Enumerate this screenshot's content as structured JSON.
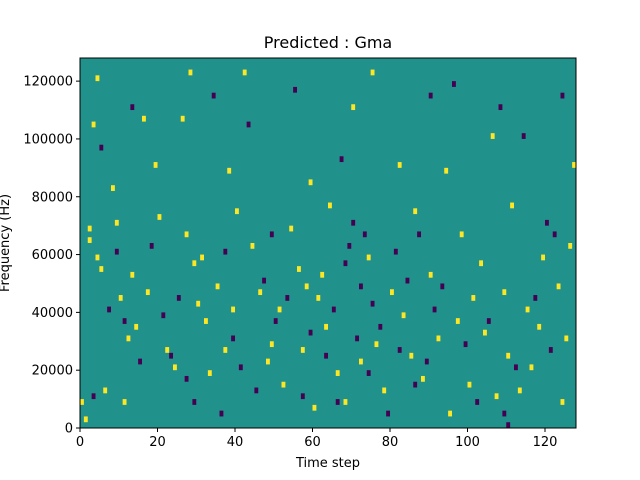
{
  "chart_data": {
    "type": "heatmap",
    "title": "Predicted : Gma",
    "xlabel": "Time step",
    "ylabel": "Frequency (Hz)",
    "xlim": [
      0,
      128
    ],
    "ylim": [
      0,
      128000
    ],
    "xticks": [
      0,
      20,
      40,
      60,
      80,
      100,
      120
    ],
    "yticks": [
      0,
      20000,
      40000,
      60000,
      80000,
      100000,
      120000
    ],
    "grid": false,
    "colors": {
      "background": "#21918c",
      "high": "#fde725",
      "low": "#440154"
    },
    "yellow_cells": [
      [
        0,
        8000
      ],
      [
        1,
        2000
      ],
      [
        2,
        68000
      ],
      [
        2,
        64000
      ],
      [
        3,
        104000
      ],
      [
        4,
        120000
      ],
      [
        4,
        58000
      ],
      [
        5,
        54000
      ],
      [
        6,
        12000
      ],
      [
        8,
        82000
      ],
      [
        9,
        70000
      ],
      [
        10,
        44000
      ],
      [
        11,
        8000
      ],
      [
        12,
        30000
      ],
      [
        13,
        52000
      ],
      [
        14,
        34000
      ],
      [
        16,
        106000
      ],
      [
        17,
        46000
      ],
      [
        19,
        90000
      ],
      [
        20,
        72000
      ],
      [
        22,
        26000
      ],
      [
        24,
        20000
      ],
      [
        26,
        106000
      ],
      [
        27,
        66000
      ],
      [
        28,
        122000
      ],
      [
        29,
        56000
      ],
      [
        30,
        42000
      ],
      [
        31,
        58000
      ],
      [
        32,
        36000
      ],
      [
        33,
        18000
      ],
      [
        35,
        48000
      ],
      [
        37,
        26000
      ],
      [
        38,
        88000
      ],
      [
        39,
        40000
      ],
      [
        40,
        74000
      ],
      [
        42,
        122000
      ],
      [
        44,
        62000
      ],
      [
        46,
        46000
      ],
      [
        48,
        22000
      ],
      [
        49,
        28000
      ],
      [
        51,
        40000
      ],
      [
        52,
        14000
      ],
      [
        54,
        68000
      ],
      [
        56,
        54000
      ],
      [
        57,
        26000
      ],
      [
        58,
        48000
      ],
      [
        59,
        84000
      ],
      [
        60,
        6000
      ],
      [
        61,
        44000
      ],
      [
        62,
        52000
      ],
      [
        63,
        34000
      ],
      [
        64,
        76000
      ],
      [
        66,
        18000
      ],
      [
        68,
        8000
      ],
      [
        70,
        110000
      ],
      [
        72,
        22000
      ],
      [
        74,
        58000
      ],
      [
        75,
        122000
      ],
      [
        76,
        28000
      ],
      [
        78,
        12000
      ],
      [
        80,
        46000
      ],
      [
        82,
        90000
      ],
      [
        83,
        38000
      ],
      [
        85,
        24000
      ],
      [
        86,
        74000
      ],
      [
        88,
        16000
      ],
      [
        90,
        52000
      ],
      [
        92,
        30000
      ],
      [
        94,
        88000
      ],
      [
        95,
        4000
      ],
      [
        97,
        36000
      ],
      [
        98,
        66000
      ],
      [
        100,
        14000
      ],
      [
        101,
        44000
      ],
      [
        103,
        56000
      ],
      [
        104,
        32000
      ],
      [
        106,
        100000
      ],
      [
        107,
        10000
      ],
      [
        109,
        46000
      ],
      [
        110,
        24000
      ],
      [
        111,
        76000
      ],
      [
        113,
        12000
      ],
      [
        115,
        40000
      ],
      [
        116,
        20000
      ],
      [
        118,
        34000
      ],
      [
        119,
        58000
      ],
      [
        123,
        48000
      ],
      [
        124,
        8000
      ],
      [
        125,
        30000
      ],
      [
        126,
        62000
      ],
      [
        127,
        90000
      ]
    ],
    "purple_cells": [
      [
        3,
        10000
      ],
      [
        5,
        96000
      ],
      [
        7,
        40000
      ],
      [
        9,
        60000
      ],
      [
        11,
        36000
      ],
      [
        13,
        110000
      ],
      [
        15,
        22000
      ],
      [
        18,
        62000
      ],
      [
        21,
        38000
      ],
      [
        23,
        24000
      ],
      [
        25,
        44000
      ],
      [
        27,
        16000
      ],
      [
        29,
        8000
      ],
      [
        34,
        114000
      ],
      [
        36,
        4000
      ],
      [
        37,
        60000
      ],
      [
        39,
        30000
      ],
      [
        41,
        20000
      ],
      [
        43,
        104000
      ],
      [
        45,
        12000
      ],
      [
        47,
        50000
      ],
      [
        49,
        66000
      ],
      [
        50,
        36000
      ],
      [
        53,
        44000
      ],
      [
        55,
        116000
      ],
      [
        57,
        10000
      ],
      [
        59,
        32000
      ],
      [
        63,
        24000
      ],
      [
        65,
        40000
      ],
      [
        66,
        8000
      ],
      [
        67,
        92000
      ],
      [
        68,
        56000
      ],
      [
        69,
        62000
      ],
      [
        70,
        70000
      ],
      [
        71,
        30000
      ],
      [
        72,
        48000
      ],
      [
        73,
        66000
      ],
      [
        74,
        18000
      ],
      [
        75,
        42000
      ],
      [
        77,
        34000
      ],
      [
        79,
        4000
      ],
      [
        81,
        60000
      ],
      [
        82,
        26000
      ],
      [
        84,
        50000
      ],
      [
        86,
        14000
      ],
      [
        87,
        66000
      ],
      [
        89,
        22000
      ],
      [
        90,
        114000
      ],
      [
        91,
        40000
      ],
      [
        93,
        48000
      ],
      [
        96,
        118000
      ],
      [
        99,
        28000
      ],
      [
        102,
        8000
      ],
      [
        105,
        36000
      ],
      [
        108,
        110000
      ],
      [
        109,
        4000
      ],
      [
        110,
        0
      ],
      [
        112,
        20000
      ],
      [
        114,
        100000
      ],
      [
        117,
        44000
      ],
      [
        120,
        70000
      ],
      [
        121,
        26000
      ],
      [
        122,
        66000
      ],
      [
        124,
        114000
      ]
    ]
  },
  "ticks": {
    "x": [
      "0",
      "20",
      "40",
      "60",
      "80",
      "100",
      "120"
    ],
    "y": [
      "0",
      "20000",
      "40000",
      "60000",
      "80000",
      "100000",
      "120000"
    ]
  }
}
